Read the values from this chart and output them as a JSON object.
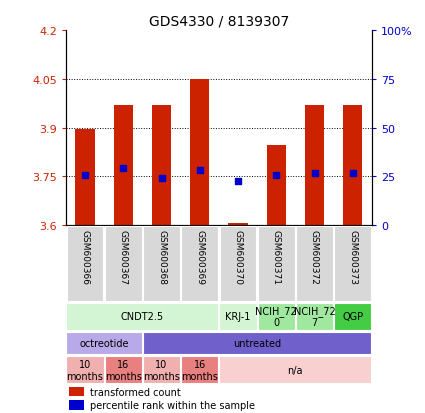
{
  "title": "GDS4330 / 8139307",
  "samples": [
    "GSM600366",
    "GSM600367",
    "GSM600368",
    "GSM600369",
    "GSM600370",
    "GSM600371",
    "GSM600372",
    "GSM600373"
  ],
  "red_values": [
    3.895,
    3.97,
    3.97,
    4.05,
    3.605,
    3.845,
    3.97,
    3.97
  ],
  "blue_values": [
    3.755,
    3.775,
    3.745,
    3.77,
    3.735,
    3.755,
    3.76,
    3.76
  ],
  "bar_bottom": 3.6,
  "ylim": [
    3.6,
    4.2
  ],
  "y2lim": [
    0,
    100
  ],
  "yticks": [
    3.6,
    3.75,
    3.9,
    4.05,
    4.2
  ],
  "y2ticks": [
    0,
    25,
    50,
    75,
    100
  ],
  "y2ticklabels": [
    "0",
    "25",
    "50",
    "75",
    "100%"
  ],
  "gridlines": [
    3.75,
    3.9,
    4.05
  ],
  "cell_line_groups": [
    {
      "label": "CNDT2.5",
      "span": [
        0,
        4
      ],
      "color": "#d4f5d4"
    },
    {
      "label": "KRJ-1",
      "span": [
        4,
        5
      ],
      "color": "#d4f5d4"
    },
    {
      "label": "NCIH_72\n0",
      "span": [
        5,
        6
      ],
      "color": "#a0e8a0"
    },
    {
      "label": "NCIH_72\n7",
      "span": [
        6,
        7
      ],
      "color": "#a0e8a0"
    },
    {
      "label": "QGP",
      "span": [
        7,
        8
      ],
      "color": "#44cc44"
    }
  ],
  "agent_groups": [
    {
      "label": "octreotide",
      "span": [
        0,
        2
      ],
      "color": "#b8aae8"
    },
    {
      "label": "untreated",
      "span": [
        2,
        8
      ],
      "color": "#7060cc"
    }
  ],
  "time_groups": [
    {
      "label": "10\nmonths",
      "span": [
        0,
        1
      ],
      "color": "#f0b0b0"
    },
    {
      "label": "16\nmonths",
      "span": [
        1,
        2
      ],
      "color": "#e88080"
    },
    {
      "label": "10\nmonths",
      "span": [
        2,
        3
      ],
      "color": "#f0b0b0"
    },
    {
      "label": "16\nmonths",
      "span": [
        3,
        4
      ],
      "color": "#e88080"
    },
    {
      "label": "n/a",
      "span": [
        4,
        8
      ],
      "color": "#f8d0d0"
    }
  ],
  "legend_red": "transformed count",
  "legend_blue": "percentile rank within the sample",
  "red_color": "#cc2200",
  "blue_color": "#0000cc",
  "bar_width": 0.5
}
